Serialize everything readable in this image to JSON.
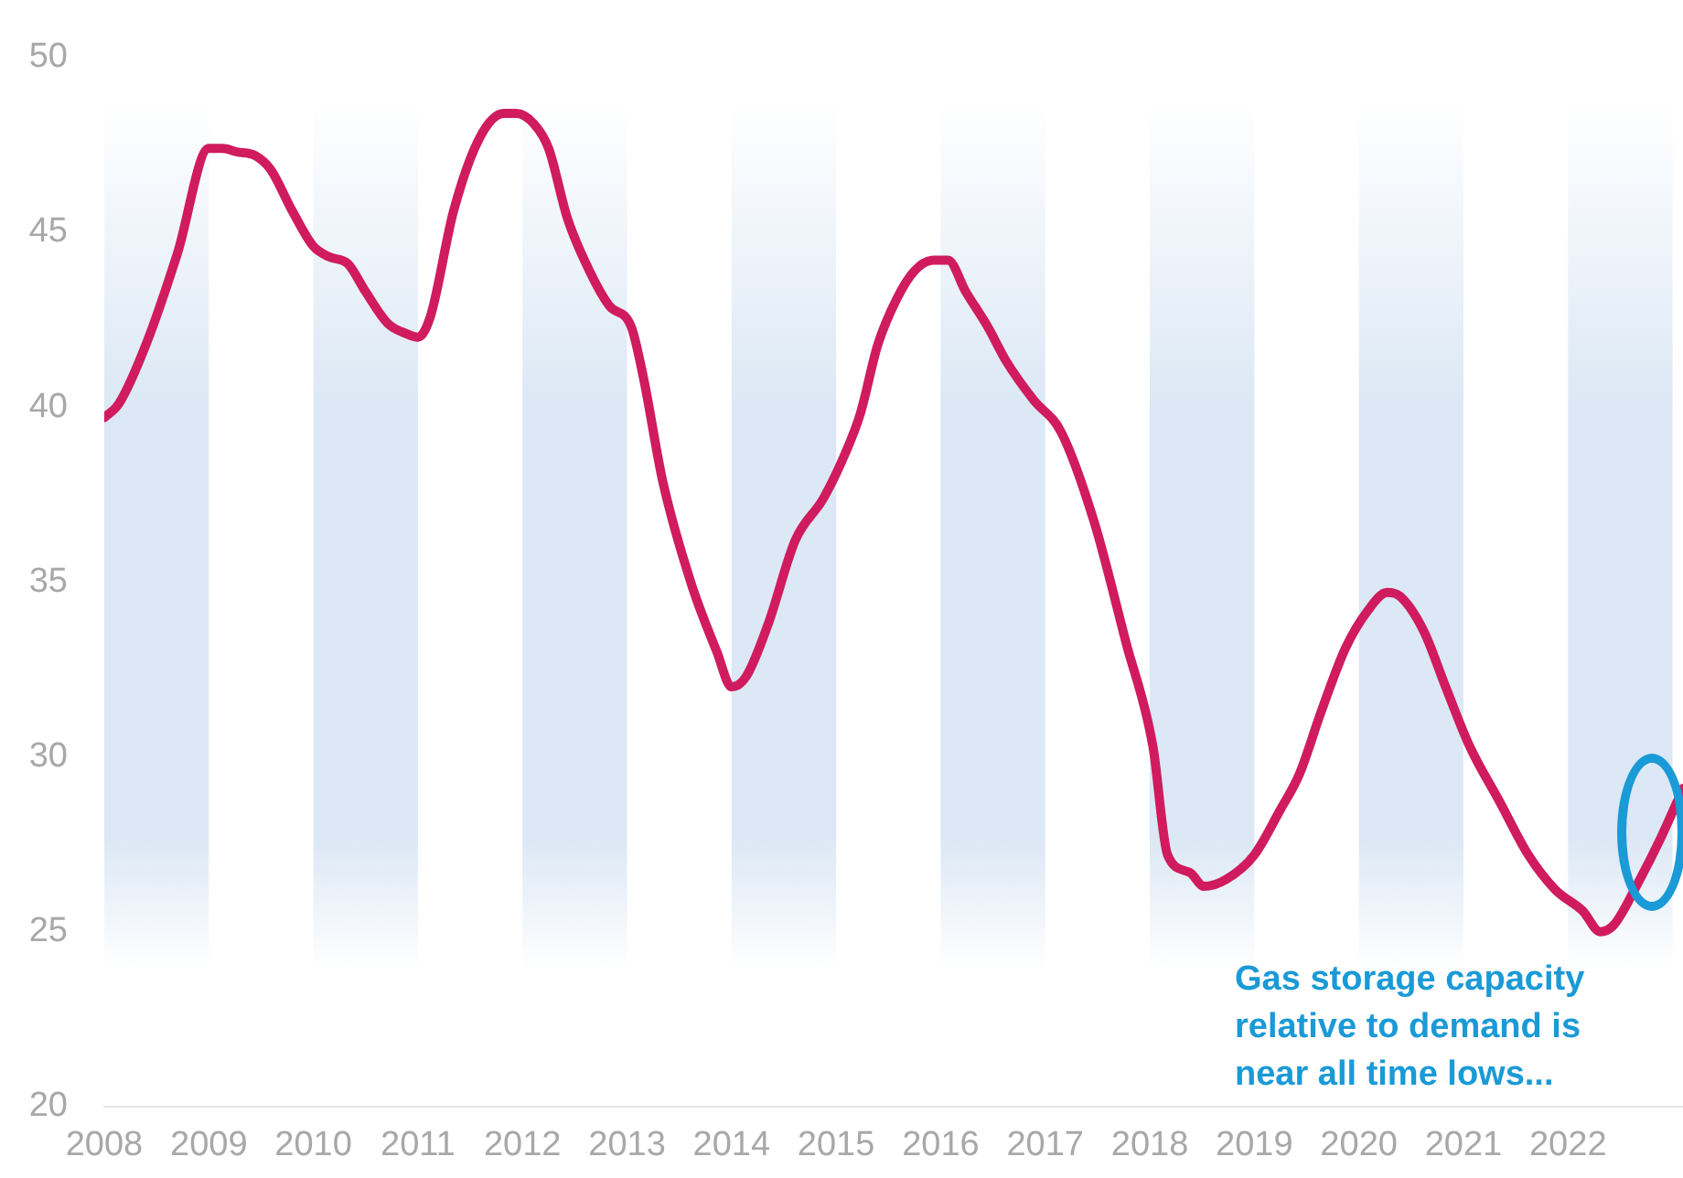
{
  "chart_data": {
    "type": "line",
    "x": [
      2008.0,
      2008.14,
      2008.4,
      2008.7,
      2009.0,
      2009.13,
      2009.27,
      2009.44,
      2009.59,
      2009.8,
      2010.0,
      2010.15,
      2010.33,
      2010.5,
      2010.71,
      2010.89,
      2011.0,
      2011.12,
      2011.34,
      2011.59,
      2011.82,
      2011.94,
      2012.11,
      2012.25,
      2012.43,
      2012.64,
      2012.83,
      2013.04,
      2013.16,
      2013.34,
      2013.62,
      2013.86,
      2014.0,
      2014.14,
      2014.35,
      2014.61,
      2014.88,
      2015.09,
      2015.23,
      2015.4,
      2015.58,
      2015.75,
      2015.93,
      2016.07,
      2016.24,
      2016.45,
      2016.63,
      2016.89,
      2017.15,
      2017.47,
      2017.77,
      2018.03,
      2018.17,
      2018.38,
      2018.52,
      2018.73,
      2019.0,
      2019.25,
      2019.43,
      2019.64,
      2019.87,
      2020.09,
      2020.27,
      2020.39,
      2020.62,
      2020.83,
      2021.06,
      2021.35,
      2021.62,
      2021.88,
      2022.14,
      2022.31,
      2022.44,
      2022.67,
      2022.89,
      2023.1
    ],
    "series": [
      {
        "color": "#d01b5f",
        "values": [
          39.7,
          40.1,
          41.8,
          44.4,
          47.4,
          47.4,
          47.3,
          47.2,
          46.8,
          45.6,
          44.6,
          44.3,
          44.1,
          43.3,
          42.4,
          42.1,
          42.0,
          42.6,
          45.6,
          47.7,
          48.4,
          48.4,
          48.1,
          47.4,
          45.4,
          43.9,
          42.9,
          42.3,
          40.8,
          37.9,
          34.9,
          33.0,
          32.0,
          32.3,
          33.8,
          36.2,
          37.4,
          38.7,
          39.8,
          41.8,
          43.1,
          43.9,
          44.2,
          44.2,
          43.3,
          42.3,
          41.3,
          40.2,
          39.3,
          36.7,
          33.3,
          30.3,
          27.2,
          26.7,
          26.3,
          26.5,
          27.2,
          28.5,
          29.5,
          31.3,
          33.1,
          34.2,
          34.7,
          34.6,
          33.6,
          32.0,
          30.3,
          28.7,
          27.2,
          26.2,
          25.6,
          25.0,
          25.2,
          26.4,
          27.7,
          29.1
        ]
      }
    ],
    "xlim": [
      2008,
      2023.1
    ],
    "xticks": [
      2008,
      2009,
      2010,
      2011,
      2012,
      2013,
      2014,
      2015,
      2016,
      2017,
      2018,
      2019,
      2020,
      2021,
      2022
    ],
    "ylim": [
      20,
      50
    ],
    "yticks": [
      20,
      25,
      30,
      35,
      40,
      45,
      50
    ],
    "bands": [
      {
        "axis": "x",
        "from": 2008,
        "to": 2009,
        "color": "#dce8f5"
      },
      {
        "axis": "x",
        "from": 2010,
        "to": 2011,
        "color": "#dce8f5"
      },
      {
        "axis": "x",
        "from": 2012,
        "to": 2013,
        "color": "#dce8f5"
      },
      {
        "axis": "x",
        "from": 2014,
        "to": 2015,
        "color": "#dce8f5"
      },
      {
        "axis": "x",
        "from": 2016,
        "to": 2017,
        "color": "#dce8f5"
      },
      {
        "axis": "x",
        "from": 2018,
        "to": 2019,
        "color": "#dce8f5"
      },
      {
        "axis": "x",
        "from": 2020,
        "to": 2021,
        "color": "#dce8f5"
      },
      {
        "axis": "x",
        "from": 2022,
        "to": 2023,
        "color": "#dce8f5"
      }
    ],
    "annotations": [
      "Gas storage capacity relative to demand is near all time lows..."
    ],
    "grid": false,
    "legend": false,
    "marker": "none",
    "line_style": "solid"
  }
}
